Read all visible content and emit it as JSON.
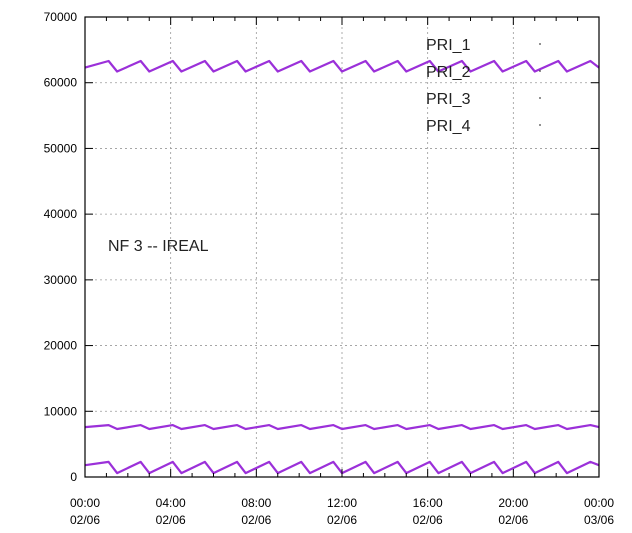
{
  "chart_data": {
    "type": "line",
    "title": "",
    "xlabel": "",
    "ylabel": "",
    "ylim": [
      0,
      70000
    ],
    "yticks": [
      0,
      10000,
      20000,
      30000,
      40000,
      50000,
      60000,
      70000
    ],
    "ytick_labels": [
      "0",
      "10000",
      "20000",
      "30000",
      "40000",
      "50000",
      "60000",
      "70000"
    ],
    "xlim": [
      "02/06 00:00",
      "03/06 00:00"
    ],
    "x_ticks": [
      {
        "time": "00:00",
        "date": "02/06"
      },
      {
        "time": "04:00",
        "date": "02/06"
      },
      {
        "time": "08:00",
        "date": "02/06"
      },
      {
        "time": "12:00",
        "date": "02/06"
      },
      {
        "time": "16:00",
        "date": "02/06"
      },
      {
        "time": "20:00",
        "date": "02/06"
      },
      {
        "time": "00:00",
        "date": "03/06"
      }
    ],
    "grid": true,
    "legend_position": "top-right",
    "annotation": "NF 3 -- IREAL",
    "line_color": "#9b30d9",
    "period_hours": 1.5,
    "series": [
      {
        "name": "PRI_1",
        "x_hours": [
          0,
          1.1,
          1.5,
          2.6,
          3.0,
          4.1,
          4.5,
          5.6,
          6.0,
          7.1,
          7.5,
          8.6,
          9.0,
          10.1,
          10.5,
          11.6,
          12.0,
          13.1,
          13.5,
          14.6,
          15.0,
          16.1,
          16.5,
          17.6,
          18.0,
          19.1,
          19.5,
          20.6,
          21.0,
          22.1,
          22.5,
          23.6,
          24.0
        ],
        "values": [
          62300,
          63300,
          61700,
          63300,
          61700,
          63300,
          61700,
          63300,
          61700,
          63300,
          61700,
          63300,
          61700,
          63300,
          61700,
          63300,
          61700,
          63300,
          61700,
          63300,
          61700,
          63300,
          61700,
          63300,
          61700,
          63300,
          61700,
          63300,
          61700,
          63300,
          61700,
          63300,
          62300
        ]
      },
      {
        "name": "PRI_2",
        "x_hours": [
          0,
          1.1,
          1.5,
          2.6,
          3.0,
          4.1,
          4.5,
          5.6,
          6.0,
          7.1,
          7.5,
          8.6,
          9.0,
          10.1,
          10.5,
          11.6,
          12.0,
          13.1,
          13.5,
          14.6,
          15.0,
          16.1,
          16.5,
          17.6,
          18.0,
          19.1,
          19.5,
          20.6,
          21.0,
          22.1,
          22.5,
          23.6,
          24.0
        ],
        "values": [
          7600,
          7900,
          7300,
          7900,
          7300,
          7900,
          7300,
          7900,
          7300,
          7900,
          7300,
          7900,
          7300,
          7900,
          7300,
          7900,
          7300,
          7900,
          7300,
          7900,
          7300,
          7900,
          7300,
          7900,
          7300,
          7900,
          7300,
          7900,
          7300,
          7900,
          7300,
          7900,
          7600
        ]
      },
      {
        "name": "PRI_3",
        "x_hours": [
          0,
          1.1,
          1.5,
          2.6,
          3.0,
          4.1,
          4.5,
          5.6,
          6.0,
          7.1,
          7.5,
          8.6,
          9.0,
          10.1,
          10.5,
          11.6,
          12.0,
          13.1,
          13.5,
          14.6,
          15.0,
          16.1,
          16.5,
          17.6,
          18.0,
          19.1,
          19.5,
          20.6,
          21.0,
          22.1,
          22.5,
          23.6,
          24.0
        ],
        "values": [
          1800,
          2300,
          600,
          2300,
          600,
          2300,
          600,
          2300,
          600,
          2300,
          600,
          2300,
          600,
          2300,
          600,
          2300,
          600,
          2300,
          600,
          2300,
          600,
          2300,
          600,
          2300,
          600,
          2300,
          600,
          2300,
          600,
          2300,
          600,
          2300,
          1800
        ]
      },
      {
        "name": "PRI_4",
        "x_hours": [],
        "values": []
      }
    ]
  }
}
